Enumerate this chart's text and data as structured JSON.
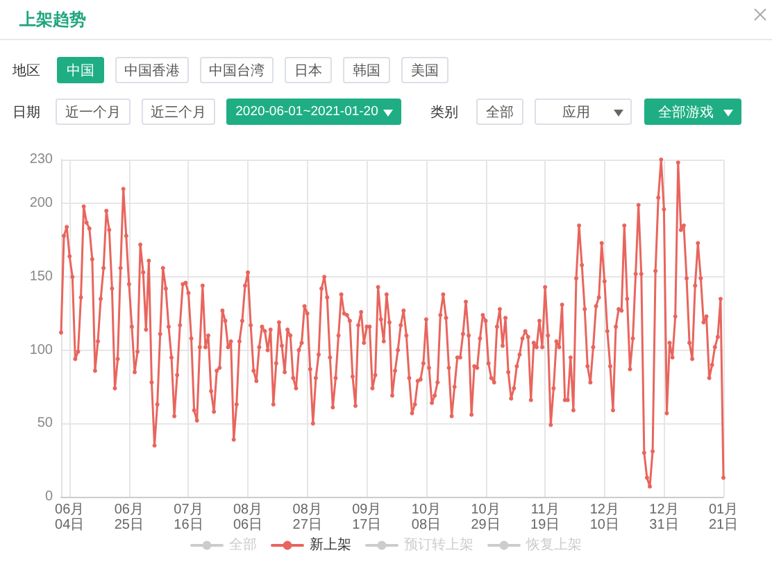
{
  "chart_data": {
    "type": "line",
    "title": "上架趋势",
    "annotations": [
      "地区",
      "中国",
      "中国香港",
      "中国台湾",
      "日本",
      "韩国",
      "美国",
      "日期",
      "近一个月",
      "近三个月",
      "2020-06-01~2021-01-20",
      "类别",
      "全部",
      "应用",
      "全部游戏"
    ],
    "categories": [
      null,
      null,
      null,
      "06月04日",
      null,
      null,
      null,
      null,
      null,
      null,
      null,
      null,
      null,
      null,
      null,
      null,
      null,
      null,
      null,
      null,
      null,
      null,
      null,
      null,
      "06月25日",
      null,
      null,
      null,
      null,
      null,
      null,
      null,
      null,
      null,
      null,
      null,
      null,
      null,
      null,
      null,
      null,
      null,
      null,
      null,
      null,
      "07月16日",
      null,
      null,
      null,
      null,
      null,
      null,
      null,
      null,
      null,
      null,
      null,
      null,
      null,
      null,
      null,
      null,
      null,
      null,
      null,
      null,
      "08月06日",
      null,
      null,
      null,
      null,
      null,
      null,
      null,
      null,
      null,
      null,
      null,
      null,
      null,
      null,
      null,
      null,
      null,
      null,
      null,
      null,
      "08月27日",
      null,
      null,
      null,
      null,
      null,
      null,
      null,
      null,
      null,
      null,
      null,
      null,
      null,
      null,
      null,
      null,
      null,
      null,
      null,
      null,
      "09月17日",
      null,
      null,
      null,
      null,
      null,
      null,
      null,
      null,
      null,
      null,
      null,
      null,
      null,
      null,
      null,
      null,
      null,
      null,
      null,
      null,
      "10月08日",
      null,
      null,
      null,
      null,
      null,
      null,
      null,
      null,
      null,
      null,
      null,
      null,
      null,
      null,
      null,
      null,
      null,
      null,
      null,
      null,
      "10月29日",
      null,
      null,
      null,
      null,
      null,
      null,
      null,
      null,
      null,
      null,
      null,
      null,
      null,
      null,
      null,
      null,
      null,
      null,
      null,
      null,
      "11月19日",
      null,
      null,
      null,
      null,
      null,
      null,
      null,
      null,
      null,
      null,
      null,
      null,
      null,
      null,
      null,
      null,
      null,
      null,
      null,
      null,
      "12月10日",
      null,
      null,
      null,
      null,
      null,
      null,
      null,
      null,
      null,
      null,
      null,
      null,
      null,
      null,
      null,
      null,
      null,
      null,
      null,
      null,
      "12月31日",
      null,
      null,
      null,
      null,
      null,
      null,
      null,
      null,
      null,
      null,
      null,
      null,
      null,
      null,
      null,
      null,
      null,
      null,
      null,
      null,
      "01月21日"
    ],
    "series": [
      {
        "name": "全部",
        "color": "#cccccc",
        "values": [
          null,
          null,
          null,
          null,
          null,
          null,
          null,
          null,
          null,
          null,
          null,
          null,
          null,
          null,
          null,
          null,
          null,
          null,
          null,
          null,
          null,
          null,
          null,
          null,
          null,
          null,
          null,
          null,
          null,
          null,
          null,
          null,
          null,
          null,
          null,
          null,
          null,
          null,
          null,
          null,
          null,
          null,
          null,
          null,
          null,
          null,
          null,
          null,
          null,
          null,
          null,
          null,
          null,
          null,
          null,
          null,
          null,
          null,
          null,
          null,
          null,
          null,
          null,
          null,
          null,
          null,
          null,
          null,
          null,
          null,
          null,
          null,
          null,
          null,
          null,
          null,
          null,
          null,
          null,
          null,
          null,
          null,
          null,
          null,
          null,
          null,
          null,
          null,
          null,
          null,
          null,
          null,
          null,
          null,
          null,
          null,
          null,
          null,
          null,
          null,
          null,
          null,
          null,
          null,
          null,
          null,
          null,
          null,
          null,
          null,
          null,
          null,
          null,
          null,
          null,
          null,
          null,
          null,
          null,
          null,
          null,
          null,
          null,
          null,
          null,
          null,
          null,
          null,
          null,
          null,
          null,
          null,
          null,
          null,
          null,
          null,
          null,
          null,
          null,
          null,
          null,
          null,
          null,
          null,
          null,
          null,
          null,
          null,
          null,
          null,
          null,
          null,
          null,
          null,
          null,
          null,
          null,
          null,
          null,
          null,
          null,
          null,
          null,
          null,
          null,
          null,
          null,
          null,
          null,
          null,
          null,
          null,
          null,
          null,
          null,
          null,
          null,
          null,
          null,
          null,
          null,
          null,
          null,
          null,
          null,
          null,
          null,
          null,
          null,
          null,
          null,
          null,
          null,
          null,
          null,
          null,
          null,
          null,
          null,
          null,
          null,
          null,
          null,
          null,
          null,
          null,
          null,
          null,
          null,
          null,
          null,
          null,
          null,
          null,
          null,
          null,
          null,
          null,
          null,
          null,
          null,
          null,
          null,
          null,
          null,
          null,
          null,
          null,
          null,
          null,
          null,
          null,
          null,
          null,
          null
        ]
      },
      {
        "name": "新上架",
        "color": "#e8655d",
        "values": [
          112,
          178,
          184,
          164,
          150,
          94,
          99,
          136,
          198,
          187,
          183,
          162,
          86,
          106,
          135,
          156,
          195,
          182,
          142,
          74,
          94,
          156,
          210,
          178,
          145,
          116,
          85,
          99,
          172,
          153,
          114,
          161,
          78,
          35,
          63,
          111,
          156,
          142,
          116,
          95,
          55,
          83,
          117,
          145,
          146,
          139,
          108,
          59,
          52,
          102,
          144,
          102,
          110,
          72,
          58,
          86,
          88,
          127,
          120,
          102,
          106,
          39,
          63,
          106,
          120,
          144,
          153,
          117,
          86,
          79,
          102,
          116,
          113,
          100,
          114,
          63,
          91,
          119,
          103,
          85,
          114,
          110,
          81,
          74,
          100,
          105,
          130,
          125,
          87,
          50,
          81,
          97,
          142,
          150,
          136,
          95,
          61,
          81,
          110,
          138,
          125,
          124,
          120,
          82,
          62,
          117,
          126,
          105,
          116,
          116,
          74,
          83,
          143,
          121,
          106,
          138,
          119,
          69,
          86,
          100,
          117,
          127,
          110,
          81,
          57,
          63,
          79,
          80,
          91,
          121,
          88,
          64,
          69,
          78,
          124,
          138,
          122,
          88,
          55,
          75,
          95,
          95,
          111,
          133,
          110,
          56,
          89,
          88,
          108,
          124,
          120,
          91,
          81,
          78,
          116,
          128,
          103,
          122,
          85,
          67,
          74,
          89,
          97,
          108,
          113,
          109,
          66,
          105,
          102,
          120,
          102,
          143,
          110,
          49,
          74,
          106,
          102,
          131,
          66,
          66,
          95,
          59,
          149,
          185,
          158,
          128,
          89,
          78,
          102,
          130,
          136,
          173,
          147,
          113,
          89,
          59,
          116,
          128,
          127,
          185,
          135,
          87,
          108,
          152,
          199,
          152,
          30,
          13,
          7,
          31,
          154,
          204,
          230,
          196,
          57,
          105,
          95,
          123,
          228,
          182,
          185,
          149,
          105,
          94,
          144,
          173,
          149,
          119,
          123,
          81,
          90,
          102,
          109,
          135,
          13
        ]
      },
      {
        "name": "预订转上架",
        "color": "#cccccc",
        "values": [
          null,
          null,
          null,
          null,
          null,
          null,
          null,
          null,
          null,
          null,
          null,
          null,
          null,
          null,
          null,
          null,
          null,
          null,
          null,
          null,
          null,
          null,
          null,
          null,
          null,
          null,
          null,
          null,
          null,
          null,
          null,
          null,
          null,
          null,
          null,
          null,
          null,
          null,
          null,
          null,
          null,
          null,
          null,
          null,
          null,
          null,
          null,
          null,
          null,
          null,
          null,
          null,
          null,
          null,
          null,
          null,
          null,
          null,
          null,
          null,
          null,
          null,
          null,
          null,
          null,
          null,
          null,
          null,
          null,
          null,
          null,
          null,
          null,
          null,
          null,
          null,
          null,
          null,
          null,
          null,
          null,
          null,
          null,
          null,
          null,
          null,
          null,
          null,
          null,
          null,
          null,
          null,
          null,
          null,
          null,
          null,
          null,
          null,
          null,
          null,
          null,
          null,
          null,
          null,
          null,
          null,
          null,
          null,
          null,
          null,
          null,
          null,
          null,
          null,
          null,
          null,
          null,
          null,
          null,
          null,
          null,
          null,
          null,
          null,
          null,
          null,
          null,
          null,
          null,
          null,
          null,
          null,
          null,
          null,
          null,
          null,
          null,
          null,
          null,
          null,
          null,
          null,
          null,
          null,
          null,
          null,
          null,
          null,
          null,
          null,
          null,
          null,
          null,
          null,
          null,
          null,
          null,
          null,
          null,
          null,
          null,
          null,
          null,
          null,
          null,
          null,
          null,
          null,
          null,
          null,
          null,
          null,
          null,
          null,
          null,
          null,
          null,
          null,
          null,
          null,
          null,
          null,
          null,
          null,
          null,
          null,
          null,
          null,
          null,
          null,
          null,
          null,
          null,
          null,
          null,
          null,
          null,
          null,
          null,
          null,
          null,
          null,
          null,
          null,
          null,
          null,
          null,
          null,
          null,
          null,
          null,
          null,
          null,
          null,
          null,
          null,
          null,
          null,
          null,
          null,
          null,
          null,
          null,
          null,
          null,
          null,
          null,
          null,
          null,
          null,
          null,
          null,
          null,
          null,
          null
        ]
      },
      {
        "name": "恢复上架",
        "color": "#cccccc",
        "values": [
          null,
          null,
          null,
          null,
          null,
          null,
          null,
          null,
          null,
          null,
          null,
          null,
          null,
          null,
          null,
          null,
          null,
          null,
          null,
          null,
          null,
          null,
          null,
          null,
          null,
          null,
          null,
          null,
          null,
          null,
          null,
          null,
          null,
          null,
          null,
          null,
          null,
          null,
          null,
          null,
          null,
          null,
          null,
          null,
          null,
          null,
          null,
          null,
          null,
          null,
          null,
          null,
          null,
          null,
          null,
          null,
          null,
          null,
          null,
          null,
          null,
          null,
          null,
          null,
          null,
          null,
          null,
          null,
          null,
          null,
          null,
          null,
          null,
          null,
          null,
          null,
          null,
          null,
          null,
          null,
          null,
          null,
          null,
          null,
          null,
          null,
          null,
          null,
          null,
          null,
          null,
          null,
          null,
          null,
          null,
          null,
          null,
          null,
          null,
          null,
          null,
          null,
          null,
          null,
          null,
          null,
          null,
          null,
          null,
          null,
          null,
          null,
          null,
          null,
          null,
          null,
          null,
          null,
          null,
          null,
          null,
          null,
          null,
          null,
          null,
          null,
          null,
          null,
          null,
          null,
          null,
          null,
          null,
          null,
          null,
          null,
          null,
          null,
          null,
          null,
          null,
          null,
          null,
          null,
          null,
          null,
          null,
          null,
          null,
          null,
          null,
          null,
          null,
          null,
          null,
          null,
          null,
          null,
          null,
          null,
          null,
          null,
          null,
          null,
          null,
          null,
          null,
          null,
          null,
          null,
          null,
          null,
          null,
          null,
          null,
          null,
          null,
          null,
          null,
          null,
          null,
          null,
          null,
          null,
          null,
          null,
          null,
          null,
          null,
          null,
          null,
          null,
          null,
          null,
          null,
          null,
          null,
          null,
          null,
          null,
          null,
          null,
          null,
          null,
          null,
          null,
          null,
          null,
          null,
          null,
          null,
          null,
          null,
          null,
          null,
          null,
          null,
          null,
          null,
          null,
          null,
          null,
          null,
          null,
          null,
          null,
          null,
          null,
          null,
          null,
          null,
          null,
          null,
          null,
          null
        ]
      }
    ],
    "ylim": [
      0,
      230
    ],
    "yticks": [
      0,
      50,
      100,
      150,
      200,
      230
    ],
    "grid": true,
    "legend": "bottom",
    "marker": "circle"
  }
}
